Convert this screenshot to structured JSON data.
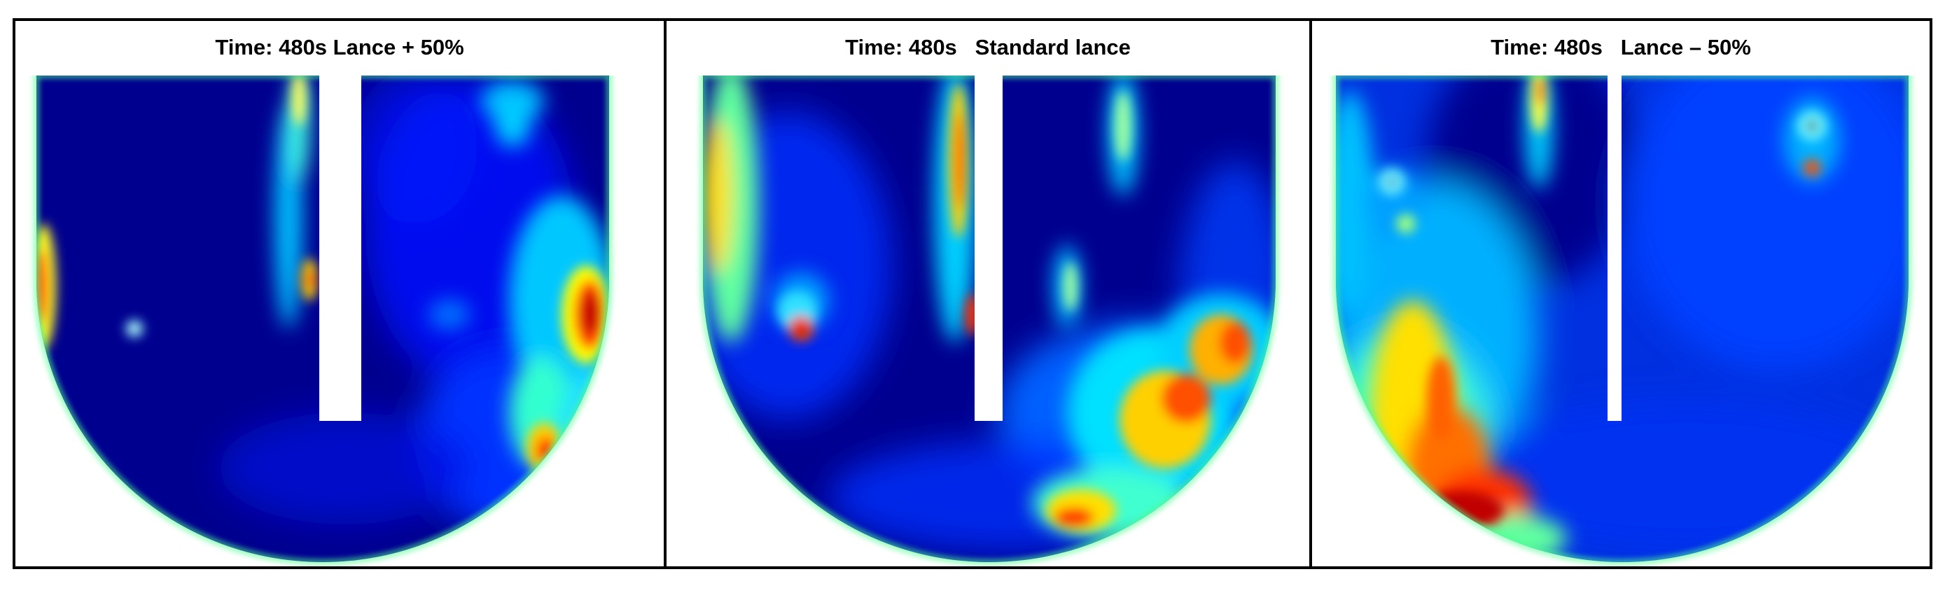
{
  "panels": [
    {
      "title": "Time: 480s Lance + 50%",
      "lance_variant": "+50%"
    },
    {
      "title": "Time: 480s   Standard lance",
      "lance_variant": "standard"
    },
    {
      "title": "Time: 480s   Lance – 50%",
      "lance_variant": "-50%"
    }
  ],
  "colormap": [
    "#00007f",
    "#0000ff",
    "#0080ff",
    "#00ffff",
    "#80ff80",
    "#ffff00",
    "#ff8000",
    "#ff0000",
    "#7f0000"
  ],
  "colors": {
    "border": "#000000",
    "background": "#ffffff",
    "lance": "#ffffff"
  }
}
